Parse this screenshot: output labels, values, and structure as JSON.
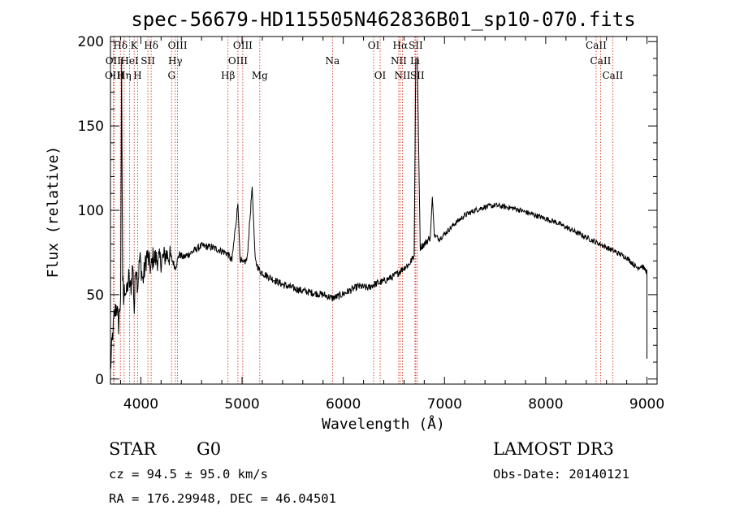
{
  "chart_data": {
    "type": "line",
    "title": "spec-56679-HD115505N462836B01_sp10-070.fits",
    "xlabel": "Wavelength (Å)",
    "ylabel": "Flux (relative)",
    "xlim": [
      3700,
      9100
    ],
    "ylim": [
      -3,
      203
    ],
    "xticks": [
      4000,
      5000,
      6000,
      7000,
      8000,
      9000
    ],
    "xtick_labels": [
      "4000",
      "5000",
      "6000",
      "7000",
      "8000",
      "9000"
    ],
    "yticks": [
      0,
      50,
      100,
      150,
      200
    ],
    "ytick_labels": [
      "0",
      "50",
      "100",
      "150",
      "200"
    ],
    "series": [
      {
        "name": "flux",
        "x": [
          3700,
          3720,
          3740,
          3760,
          3780,
          3800,
          3810,
          3820,
          3830,
          3840,
          3860,
          3880,
          3900,
          3920,
          3935,
          3950,
          3968,
          3990,
          4020,
          4060,
          4101,
          4120,
          4160,
          4200,
          4250,
          4300,
          4340,
          4380,
          4420,
          4500,
          4600,
          4700,
          4800,
          4861,
          4900,
          4959,
          4980,
          5007,
          5050,
          5100,
          5130,
          5175,
          5250,
          5400,
          5550,
          5700,
          5800,
          5893,
          5950,
          6050,
          6150,
          6250,
          6300,
          6400,
          6500,
          6563,
          6600,
          6650,
          6700,
          6716,
          6731,
          6760,
          6800,
          6860,
          6880,
          6900,
          6950,
          7000,
          7100,
          7200,
          7300,
          7400,
          7500,
          7600,
          7700,
          7800,
          7900,
          8000,
          8100,
          8200,
          8300,
          8400,
          8500,
          8600,
          8700,
          8800,
          8850,
          8900,
          8950,
          8980,
          9000
        ],
        "y": [
          5,
          25,
          38,
          44,
          32,
          48,
          190,
          60,
          45,
          55,
          50,
          60,
          52,
          68,
          40,
          70,
          55,
          72,
          58,
          74,
          65,
          72,
          71,
          70,
          74,
          72,
          66,
          74,
          72,
          75,
          79,
          78,
          76,
          74,
          70,
          104,
          72,
          68,
          71,
          114,
          70,
          64,
          61,
          56,
          53,
          51,
          50,
          48,
          49,
          52,
          55,
          54,
          56,
          58,
          61,
          64,
          66,
          68,
          73,
          190,
          190,
          78,
          80,
          84,
          108,
          85,
          83,
          86,
          92,
          97,
          100,
          102,
          103,
          102,
          101,
          99,
          97,
          95,
          93,
          90,
          87,
          84,
          81,
          78,
          75,
          72,
          69,
          66,
          67,
          65,
          64
        ]
      }
    ],
    "spectral_lines": [
      {
        "label": "Hδ",
        "wave": 3798,
        "row": 1
      },
      {
        "label": "OII",
        "wave": 3727,
        "row": 2
      },
      {
        "label": "OIII",
        "wave": 3740,
        "row": 3
      },
      {
        "label": "Hη",
        "wave": 3835,
        "row": 3
      },
      {
        "label": "K",
        "wave": 3934,
        "row": 1
      },
      {
        "label": "HeI",
        "wave": 3889,
        "row": 2
      },
      {
        "label": "H",
        "wave": 3968,
        "row": 3
      },
      {
        "label": "SII",
        "wave": 4070,
        "row": 2
      },
      {
        "label": "Hδ",
        "wave": 4102,
        "row": 1
      },
      {
        "label": "OIII",
        "wave": 4363,
        "row": 1
      },
      {
        "label": "Hγ",
        "wave": 4340,
        "row": 2
      },
      {
        "label": "G",
        "wave": 4304,
        "row": 3
      },
      {
        "label": "Hβ",
        "wave": 4861,
        "row": 3
      },
      {
        "label": "OIII",
        "wave": 5007,
        "row": 1
      },
      {
        "label": "OIII",
        "wave": 4959,
        "row": 2
      },
      {
        "label": "Mg",
        "wave": 5175,
        "row": 3
      },
      {
        "label": "Na",
        "wave": 5893,
        "row": 2
      },
      {
        "label": "OI",
        "wave": 6300,
        "row": 1
      },
      {
        "label": "OI",
        "wave": 6364,
        "row": 3
      },
      {
        "label": "Hα",
        "wave": 6563,
        "row": 1
      },
      {
        "label": "NII",
        "wave": 6548,
        "row": 2
      },
      {
        "label": "NII",
        "wave": 6584,
        "row": 3
      },
      {
        "label": "SII",
        "wave": 6716,
        "row": 1
      },
      {
        "label": "Li",
        "wave": 6708,
        "row": 2
      },
      {
        "label": "SII",
        "wave": 6731,
        "row": 3
      },
      {
        "label": "CaII",
        "wave": 8498,
        "row": 1
      },
      {
        "label": "CaII",
        "wave": 8542,
        "row": 2
      },
      {
        "label": "CaII",
        "wave": 8662,
        "row": 3
      }
    ]
  },
  "info": {
    "object_class": "STAR",
    "subclass": "G0",
    "survey": "LAMOST DR3",
    "cz": "cz = 94.5 ± 95.0 km/s",
    "obs_date": "Obs-Date: 20140121",
    "coords": "RA = 176.29948, DEC =  46.04501"
  },
  "colors": {
    "spectrum": "#000000",
    "marker_lines": "#cc2200",
    "background": "#ffffff"
  }
}
